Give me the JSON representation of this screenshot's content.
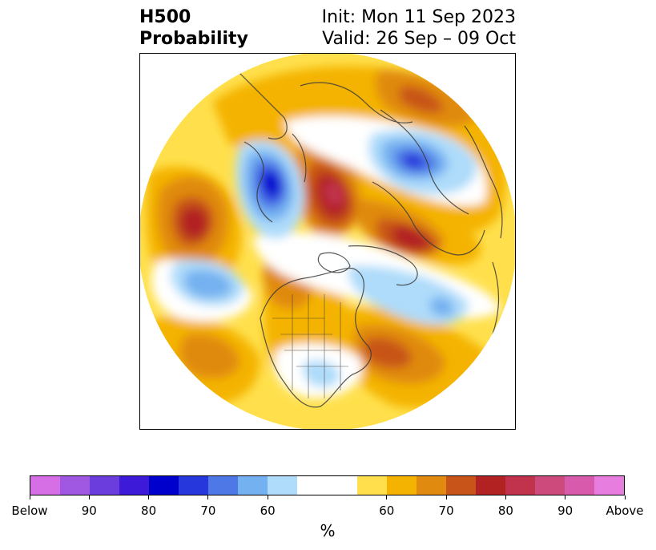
{
  "title": {
    "left_line1": "H500",
    "left_line2": "Probability",
    "right_line1": "Init: Mon 11 Sep 2023",
    "right_line2": "Valid: 26 Sep – 09 Oct"
  },
  "colorbar": {
    "colors": [
      "#d66fe6",
      "#a057e2",
      "#6a3ddc",
      "#3c1ad8",
      "#0000cd",
      "#2637dc",
      "#4e78e6",
      "#74b1f0",
      "#aedcfa",
      "#ffffff",
      "#ffffff",
      "#ffe04c",
      "#f4b300",
      "#e08a0f",
      "#c85419",
      "#b22222",
      "#c1334c",
      "#cc4b7c",
      "#d85aac",
      "#e67ddf"
    ],
    "tick_labels": [
      "Below",
      "90",
      "80",
      "70",
      "60",
      "60",
      "70",
      "80",
      "90",
      "Above"
    ],
    "unit": "%"
  },
  "map": {
    "projection": "north-polar-stereographic",
    "anomaly_colors": {
      "below_60": "#aedcfa",
      "below_70": "#74b1f0",
      "below_80": "#4e78e6",
      "below_90": "#0000cd",
      "above_50": "#ffe04c",
      "above_60": "#f4b300",
      "above_70": "#e08a0f",
      "above_80": "#c85419",
      "above_90": "#b22222",
      "above_95": "#c1334c"
    }
  }
}
